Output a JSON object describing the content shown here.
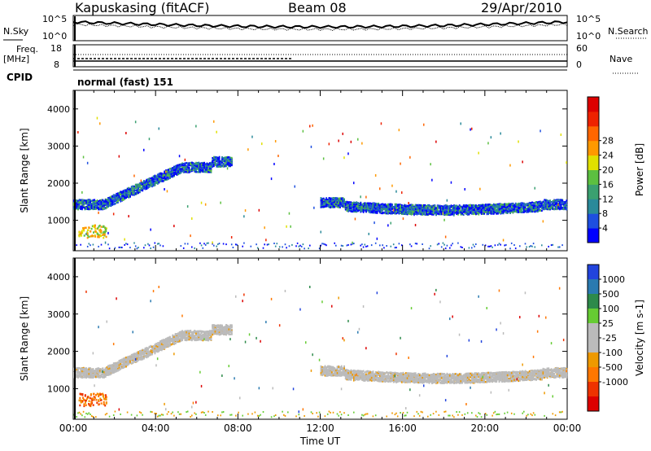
{
  "header": {
    "station": "Kapuskasing (fitACF)",
    "beam": "Beam 08",
    "date": "29/Apr/2010"
  },
  "panels": {
    "nsky_label": "N.Sky",
    "nsearch_label": "N.Search",
    "nsky_ticks": [
      "10^5",
      "10^0"
    ],
    "nsearch_ticks": [
      "10^5",
      "10^0"
    ],
    "freq_label": "Freq.",
    "freq_unit": "[MHz]",
    "freq_ticks": [
      "18",
      "8"
    ],
    "nave_label": "Nave",
    "nave_ticks": [
      "60",
      "0"
    ],
    "cpid_label": "CPID",
    "cpid_value": "normal (fast) 151"
  },
  "chart_data": [
    {
      "type": "heatmap",
      "name": "power",
      "ylabel": "Slant Range [km]",
      "ylim": [
        180,
        4500
      ],
      "yticks": [
        "1000",
        "2000",
        "3000",
        "4000"
      ],
      "colorbar_label": "Power [dB]",
      "colorbar_ticks": [
        "4",
        "8",
        "12",
        "16",
        "20",
        "24",
        "28"
      ],
      "colorscale": [
        "#0000ff",
        "#1e4fe0",
        "#2a8a9a",
        "#3aa070",
        "#5cc040",
        "#e0e000",
        "#ff9900",
        "#ff6600",
        "#ee2200",
        "#dd0000"
      ]
    },
    {
      "type": "heatmap",
      "name": "velocity",
      "ylabel": "Slant Range [km]",
      "ylim": [
        180,
        4500
      ],
      "yticks": [
        "1000",
        "2000",
        "3000",
        "4000"
      ],
      "colorbar_label": "Velocity [m s-1]",
      "colorbar_ticks": [
        "1000",
        "500",
        "100",
        "25",
        "-25",
        "-100",
        "-500",
        "-1000"
      ],
      "colorscale": [
        "#2244dd",
        "#2a7ab0",
        "#2d8a4a",
        "#66cc33",
        "#bbbbbb",
        "#bbbbbb",
        "#ee9900",
        "#ff7700",
        "#ee3300",
        "#dd0000"
      ]
    }
  ],
  "xaxis": {
    "label": "Time UT",
    "ticks": [
      "00:00",
      "04:00",
      "08:00",
      "12:00",
      "16:00",
      "20:00",
      "00:00"
    ]
  }
}
